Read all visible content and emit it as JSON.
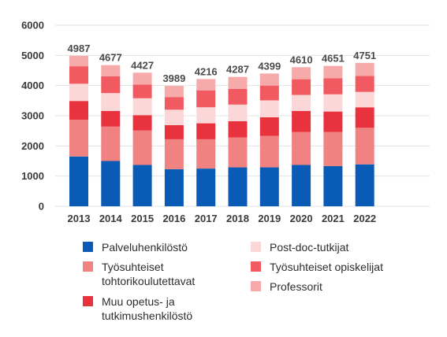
{
  "chart_data": {
    "type": "bar",
    "stacked": true,
    "categories": [
      "2013",
      "2014",
      "2015",
      "2016",
      "2017",
      "2018",
      "2019",
      "2020",
      "2021",
      "2022"
    ],
    "totals": [
      "4987",
      "4677",
      "4427",
      "3989",
      "4216",
      "4287",
      "4399",
      "4610",
      "4651",
      "4751"
    ],
    "ylim": [
      0,
      6000
    ],
    "yticks": [
      "0",
      "1000",
      "2000",
      "3000",
      "4000",
      "5000",
      "6000"
    ],
    "grid": true,
    "legend_position": "bottom",
    "series": [
      {
        "name": "Palveluhenkilöstö",
        "color": "#0a5bb5",
        "values": [
          1650,
          1500,
          1370,
          1230,
          1250,
          1290,
          1290,
          1370,
          1330,
          1390
        ]
      },
      {
        "name": "Työsuhteiset\ntohtorikoulutettavat",
        "color": "#f08282",
        "values": [
          1220,
          1140,
          1140,
          990,
          970,
          990,
          1040,
          1090,
          1130,
          1210
        ]
      },
      {
        "name": "Muu opetus- ja\ntutkimushenkilöstö",
        "color": "#e8333f",
        "values": [
          620,
          520,
          510,
          470,
          530,
          540,
          620,
          700,
          680,
          680
        ]
      },
      {
        "name": "Post-doc-tutkijat",
        "color": "#fbd7d7",
        "values": [
          570,
          590,
          560,
          510,
          530,
          550,
          560,
          530,
          570,
          510
        ]
      },
      {
        "name": "Työsuhteiset opiskelijat",
        "color": "#f05a60",
        "values": [
          580,
          560,
          450,
          420,
          560,
          520,
          490,
          520,
          530,
          530
        ]
      },
      {
        "name": "Professorit",
        "color": "#f7aaaa",
        "values": [
          347,
          367,
          397,
          369,
          376,
          397,
          399,
          400,
          411,
          431
        ]
      }
    ]
  }
}
